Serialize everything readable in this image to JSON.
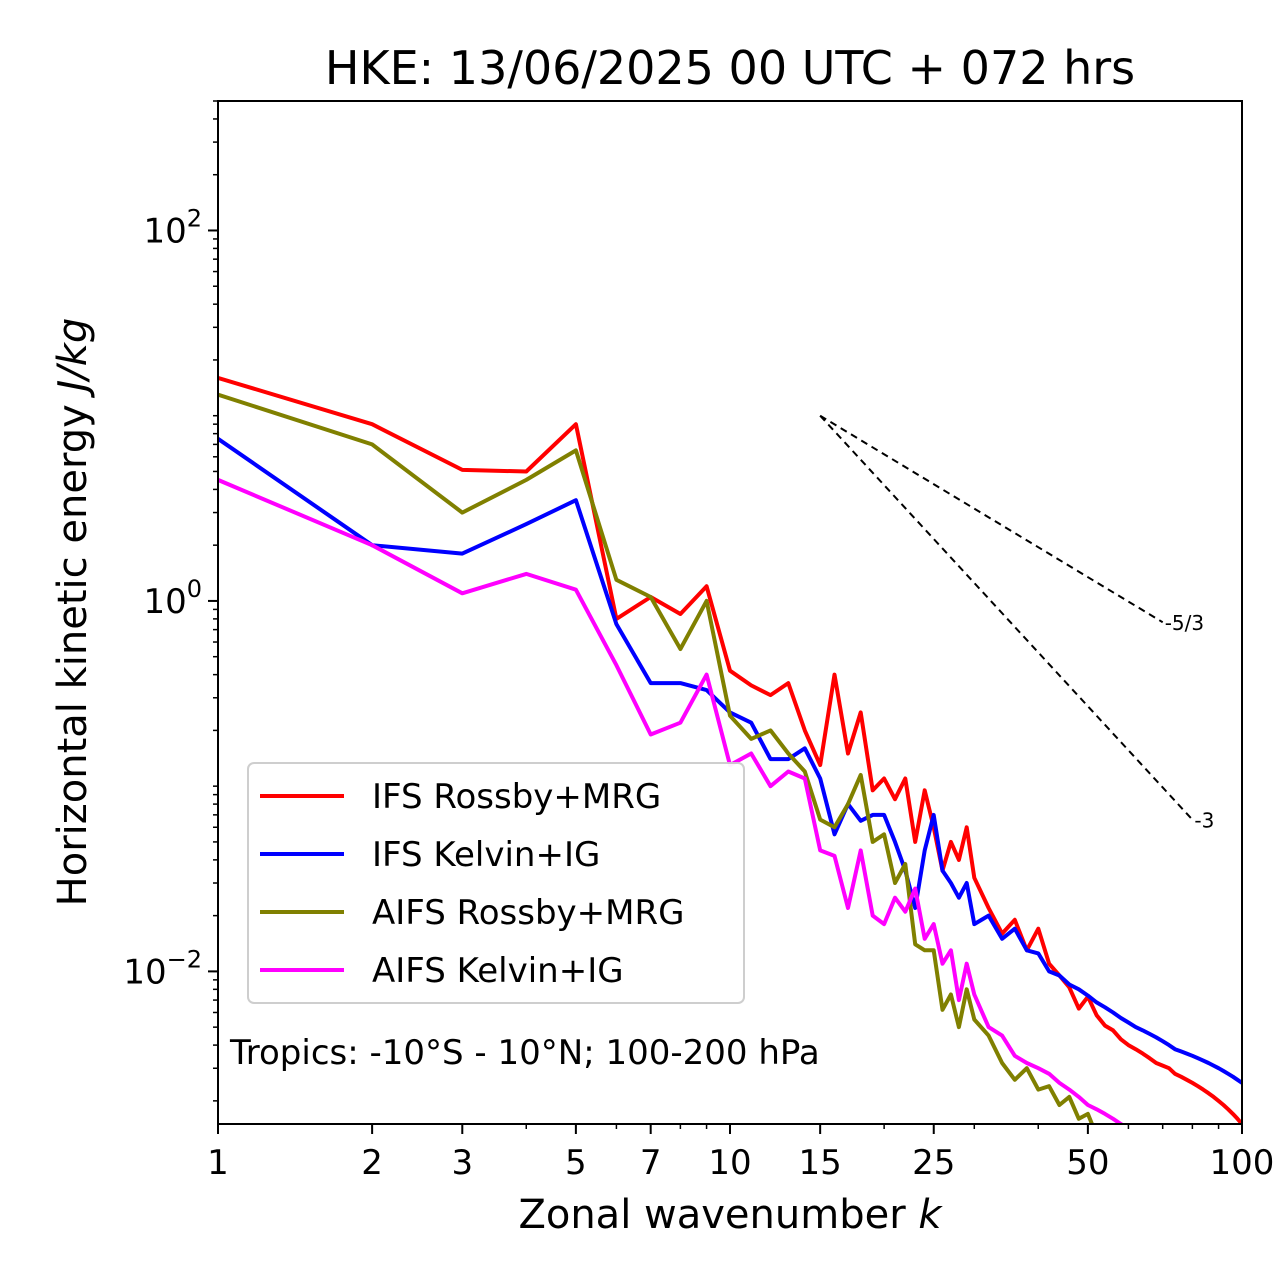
{
  "chart_data": {
    "type": "line",
    "title": "HKE: 13/06/2025 00 UTC + 072 hrs",
    "xlabel": "Zonal wavenumber",
    "xlabel_var": "k",
    "ylabel": "Horizontal kinetic energy",
    "ylabel_unit": "J/kg",
    "xscale": "log",
    "yscale": "log",
    "xlim": [
      1,
      100
    ],
    "ylim": [
      0.0015,
      500
    ],
    "x_ticks": [
      1,
      2,
      3,
      5,
      7,
      10,
      15,
      25,
      50,
      100
    ],
    "y_ticks": [
      {
        "value": 0.01,
        "base": "10",
        "exp": "−2"
      },
      {
        "value": 1,
        "base": "10",
        "exp": "0"
      },
      {
        "value": 100,
        "base": "10",
        "exp": "2"
      }
    ],
    "annotation": "Tropics: -10°S - 10°N; 100-200 hPa",
    "legend_position": "lower-left",
    "reference_slopes": [
      {
        "label": "-5/3",
        "slope": -1.6667,
        "x_start": 15,
        "x_end": 70,
        "y_start": 10
      },
      {
        "label": "-3",
        "slope": -3,
        "x_start": 15,
        "x_end": 80,
        "y_start": 10
      }
    ],
    "series": [
      {
        "name": "IFS Rossby+MRG",
        "color": "#ff0000",
        "x": [
          1,
          2,
          3,
          4,
          5,
          6,
          7,
          8,
          9,
          10,
          11,
          12,
          13,
          14,
          15,
          16,
          17,
          18,
          19,
          20,
          21,
          22,
          23,
          24,
          25,
          26,
          27,
          28,
          29,
          30,
          32,
          34,
          36,
          38,
          40,
          42,
          44,
          46,
          48,
          50,
          52,
          54,
          56,
          58,
          60,
          62,
          64,
          66,
          68,
          70,
          72,
          74,
          76,
          78,
          80,
          82,
          84,
          86,
          88,
          90,
          92,
          94,
          96,
          98,
          100
        ],
        "y": [
          16,
          9,
          5.1,
          5.0,
          9,
          0.8,
          1.05,
          0.85,
          1.2,
          0.42,
          0.35,
          0.31,
          0.36,
          0.2,
          0.13,
          0.4,
          0.15,
          0.25,
          0.095,
          0.11,
          0.085,
          0.11,
          0.05,
          0.095,
          0.06,
          0.035,
          0.05,
          0.04,
          0.06,
          0.032,
          0.022,
          0.016,
          0.019,
          0.013,
          0.017,
          0.011,
          0.0095,
          0.0082,
          0.0063,
          0.0073,
          0.0058,
          0.0051,
          0.0048,
          0.0043,
          0.004,
          0.0038,
          0.0036,
          0.0034,
          0.0032,
          0.0031,
          0.003,
          0.0028,
          0.0027,
          0.0026,
          0.0025,
          0.0024,
          0.0023,
          0.0022,
          0.0021,
          0.002,
          0.0019,
          0.0018,
          0.0017,
          0.0016,
          0.0015
        ]
      },
      {
        "name": "IFS Kelvin+IG",
        "color": "#0000ff",
        "x": [
          1,
          2,
          3,
          4,
          5,
          6,
          7,
          8,
          9,
          10,
          11,
          12,
          13,
          14,
          15,
          16,
          17,
          18,
          19,
          20,
          21,
          22,
          23,
          24,
          25,
          26,
          27,
          28,
          29,
          30,
          32,
          34,
          36,
          38,
          40,
          42,
          44,
          46,
          48,
          50,
          52,
          54,
          56,
          58,
          60,
          62,
          64,
          66,
          68,
          70,
          72,
          74,
          76,
          78,
          80,
          82,
          84,
          86,
          88,
          90,
          92,
          94,
          96,
          98,
          100
        ],
        "y": [
          7.5,
          2.0,
          1.8,
          2.6,
          3.5,
          0.75,
          0.36,
          0.36,
          0.33,
          0.25,
          0.22,
          0.14,
          0.14,
          0.16,
          0.11,
          0.055,
          0.08,
          0.065,
          0.07,
          0.07,
          0.05,
          0.035,
          0.022,
          0.045,
          0.07,
          0.035,
          0.03,
          0.025,
          0.03,
          0.018,
          0.02,
          0.015,
          0.017,
          0.013,
          0.0125,
          0.01,
          0.0095,
          0.0085,
          0.008,
          0.0074,
          0.0068,
          0.0064,
          0.006,
          0.0056,
          0.0053,
          0.005,
          0.0048,
          0.0046,
          0.0044,
          0.0042,
          0.004,
          0.0038,
          0.0037,
          0.0036,
          0.0035,
          0.0034,
          0.0033,
          0.0032,
          0.0031,
          0.003,
          0.0029,
          0.0028,
          0.0027,
          0.0026,
          0.0025
        ]
      },
      {
        "name": "AIFS Rossby+MRG",
        "color": "#808000",
        "x": [
          1,
          2,
          3,
          4,
          5,
          6,
          7,
          8,
          9,
          10,
          11,
          12,
          13,
          14,
          15,
          16,
          17,
          18,
          19,
          20,
          21,
          22,
          23,
          24,
          25,
          26,
          27,
          28,
          29,
          30,
          32,
          34,
          36,
          38,
          40,
          42,
          44,
          46,
          48,
          50,
          52,
          54,
          56,
          58
        ],
        "y": [
          13,
          7.0,
          3.0,
          4.5,
          6.5,
          1.3,
          1.05,
          0.55,
          1.0,
          0.24,
          0.18,
          0.2,
          0.15,
          0.12,
          0.066,
          0.06,
          0.08,
          0.115,
          0.05,
          0.055,
          0.03,
          0.038,
          0.014,
          0.013,
          0.013,
          0.0062,
          0.0075,
          0.005,
          0.008,
          0.0055,
          0.0045,
          0.0032,
          0.0026,
          0.003,
          0.0023,
          0.0024,
          0.0019,
          0.0021,
          0.0016,
          0.0017,
          0.0013,
          0.0014,
          0.0012,
          0.0011
        ]
      },
      {
        "name": "AIFS Kelvin+IG",
        "color": "#ff00ff",
        "x": [
          1,
          2,
          3,
          4,
          5,
          6,
          7,
          8,
          9,
          10,
          11,
          12,
          13,
          14,
          15,
          16,
          17,
          18,
          19,
          20,
          21,
          22,
          23,
          24,
          25,
          26,
          27,
          28,
          29,
          30,
          32,
          34,
          36,
          38,
          40,
          42,
          44,
          46,
          48,
          50,
          52,
          54,
          56,
          58,
          60,
          62,
          64,
          66,
          68,
          70
        ],
        "y": [
          4.5,
          2.0,
          1.1,
          1.4,
          1.15,
          0.45,
          0.19,
          0.22,
          0.4,
          0.13,
          0.15,
          0.1,
          0.12,
          0.11,
          0.045,
          0.042,
          0.022,
          0.045,
          0.02,
          0.018,
          0.025,
          0.021,
          0.028,
          0.015,
          0.018,
          0.011,
          0.013,
          0.007,
          0.011,
          0.0075,
          0.005,
          0.0045,
          0.0035,
          0.0032,
          0.003,
          0.0028,
          0.0025,
          0.0023,
          0.0021,
          0.0019,
          0.0018,
          0.0017,
          0.0016,
          0.0015,
          0.0014,
          0.0013,
          0.0012,
          0.0011,
          0.001,
          0.0009
        ]
      }
    ]
  }
}
